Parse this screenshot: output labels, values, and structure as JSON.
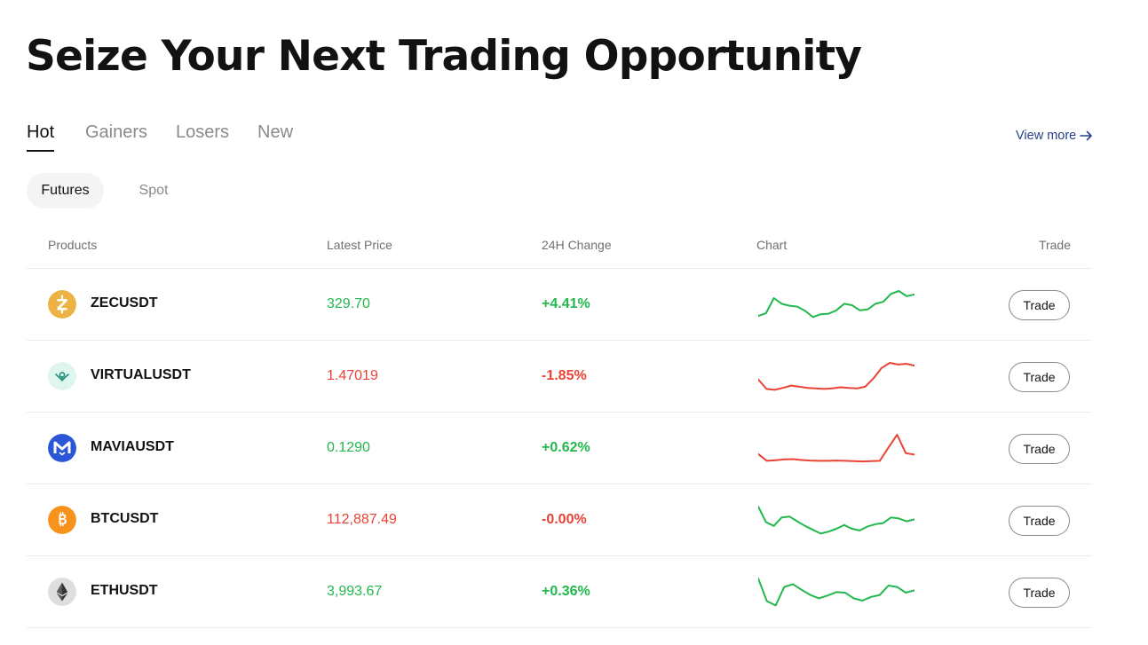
{
  "title": "Seize Your Next Trading Opportunity",
  "tabs": [
    {
      "label": "Hot",
      "active": true
    },
    {
      "label": "Gainers",
      "active": false
    },
    {
      "label": "Losers",
      "active": false
    },
    {
      "label": "New",
      "active": false
    }
  ],
  "view_more": {
    "label": "View more",
    "icon": "arrow-right-icon"
  },
  "subtabs": [
    {
      "label": "Futures",
      "active": true
    },
    {
      "label": "Spot",
      "active": false
    }
  ],
  "table": {
    "headers": {
      "products": "Products",
      "latest_price": "Latest Price",
      "change_24h": "24H Change",
      "chart": "Chart",
      "trade": "Trade"
    },
    "rows": [
      {
        "symbol": "ZECUSDT",
        "price": "329.70",
        "change": "+4.41%",
        "direction": "up",
        "icon": "zcash-icon",
        "icon_color": "#ecb244",
        "spark_color": "#22b84d",
        "spark": [
          0.12,
          0.22,
          0.75,
          0.55,
          0.48,
          0.45,
          0.3,
          0.08,
          0.18,
          0.2,
          0.32,
          0.55,
          0.5,
          0.32,
          0.35,
          0.55,
          0.62,
          0.9,
          1.0,
          0.82,
          0.88
        ]
      },
      {
        "symbol": "VIRTUALUSDT",
        "price": "1.47019",
        "change": "-1.85%",
        "direction": "down",
        "icon": "virtual-icon",
        "icon_color": "#cff3e6",
        "spark_color": "#ea4335",
        "spark": [
          0.42,
          0.08,
          0.05,
          0.12,
          0.2,
          0.16,
          0.12,
          0.1,
          0.08,
          0.1,
          0.14,
          0.12,
          0.1,
          0.16,
          0.45,
          0.82,
          1.0,
          0.94,
          0.97,
          0.9
        ]
      },
      {
        "symbol": "MAVIAUSDT",
        "price": "0.1290",
        "change": "+0.62%",
        "direction": "up",
        "icon": "mavia-icon",
        "icon_color": "#2a57d8",
        "spark_color": "#ea4335",
        "spark": [
          0.32,
          0.08,
          0.1,
          0.13,
          0.14,
          0.11,
          0.09,
          0.08,
          0.08,
          0.09,
          0.08,
          0.07,
          0.06,
          0.07,
          0.08,
          0.55,
          1.0,
          0.35,
          0.3
        ]
      },
      {
        "symbol": "BTCUSDT",
        "price": "112,887.49",
        "change": "-0.00%",
        "direction": "down",
        "icon": "bitcoin-icon",
        "icon_color": "#f7931a",
        "spark_color": "#22b84d",
        "spark": [
          1.0,
          0.45,
          0.32,
          0.62,
          0.65,
          0.48,
          0.32,
          0.18,
          0.05,
          0.12,
          0.22,
          0.35,
          0.22,
          0.16,
          0.3,
          0.38,
          0.42,
          0.62,
          0.58,
          0.48,
          0.55
        ]
      },
      {
        "symbol": "ETHUSDT",
        "price": "3,993.67",
        "change": "+0.36%",
        "direction": "up",
        "icon": "ethereum-icon",
        "icon_color": "#d9d9d9",
        "spark_color": "#22b84d",
        "spark": [
          1.0,
          0.2,
          0.05,
          0.7,
          0.8,
          0.6,
          0.42,
          0.3,
          0.4,
          0.52,
          0.5,
          0.3,
          0.22,
          0.35,
          0.42,
          0.75,
          0.7,
          0.5,
          0.58
        ]
      }
    ],
    "trade_label": "Trade"
  }
}
